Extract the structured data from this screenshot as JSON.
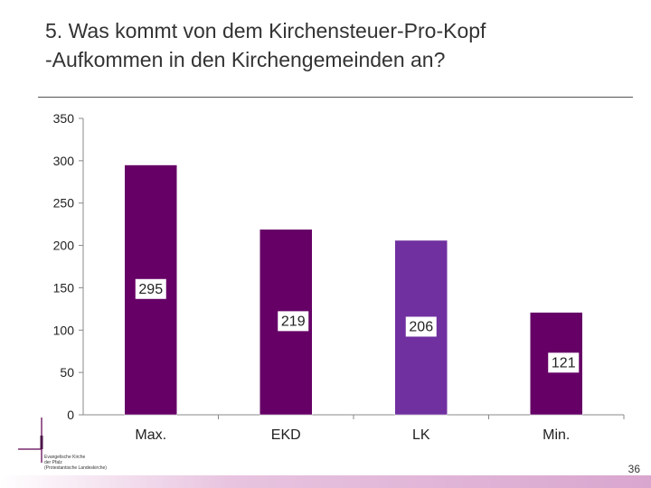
{
  "slide": {
    "title_line1": "5. Was kommt von dem Kirchensteuer-Pro-Kopf",
    "title_line2": "-Aufkommen in den Kirchengemeinden an?",
    "page_number": "36",
    "logo_text": [
      "Evangelische Kirche",
      "der Pfalz",
      "(Protestantische Landeskirche)"
    ]
  },
  "chart_data": {
    "type": "bar",
    "title": "5. Was kommt von dem Kirchensteuer-Pro-Kopf -Aufkommen in den Kirchengemeinden an?",
    "xlabel": "",
    "ylabel": "",
    "categories": [
      "Max.",
      "EKD",
      "LK",
      "Min."
    ],
    "values": [
      295,
      219,
      206,
      121
    ],
    "data_labels": [
      "295",
      "219",
      "206",
      "121"
    ],
    "bar_colors": [
      "#660066",
      "#660066",
      "#7030a0",
      "#660066"
    ],
    "ylim": [
      0,
      350
    ],
    "yticks": [
      0,
      50,
      100,
      150,
      200,
      250,
      300,
      350
    ],
    "grid": false,
    "legend": "none"
  }
}
